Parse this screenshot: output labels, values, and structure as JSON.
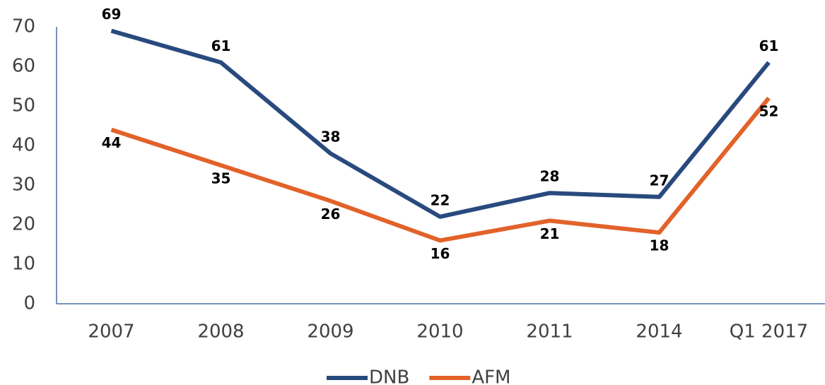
{
  "chart_data": {
    "type": "line",
    "categories": [
      "2007",
      "2008",
      "2009",
      "2010",
      "2011",
      "2014",
      "Q1 2017"
    ],
    "series": [
      {
        "name": "DNB",
        "color": "#284a7e",
        "values": [
          69,
          61,
          38,
          22,
          28,
          27,
          61
        ]
      },
      {
        "name": "AFM",
        "color": "#e2622a",
        "values": [
          44,
          35,
          26,
          16,
          21,
          18,
          52
        ]
      }
    ],
    "ylim": [
      0,
      70
    ],
    "yticks": [
      0,
      10,
      20,
      30,
      40,
      50,
      60,
      70
    ],
    "grid": false,
    "legend": "bottom",
    "data_labels": true
  }
}
